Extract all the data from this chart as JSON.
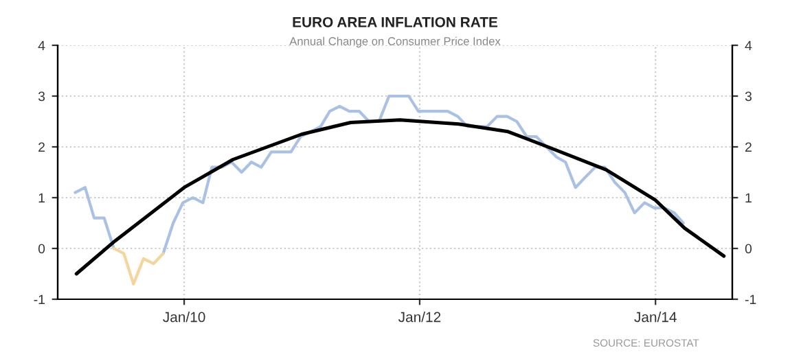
{
  "chart_data": {
    "type": "line",
    "title": "EURO AREA INFLATION RATE",
    "subtitle": "Annual Change on Consumer Price Index",
    "x": [
      "2009-01-28",
      "2009-02-28",
      "2009-03-28",
      "2009-04-28",
      "2009-05-28",
      "2009-06-28",
      "2009-07-28",
      "2009-08-28",
      "2009-09-28",
      "2009-10-28",
      "2009-11-28",
      "2009-12-28",
      "2010-01-28",
      "2010-02-28",
      "2010-03-28",
      "2010-04-28",
      "2010-05-28",
      "2010-06-28",
      "2010-07-28",
      "2010-08-28",
      "2010-09-28",
      "2010-10-28",
      "2010-11-28",
      "2010-12-28",
      "2011-01-28",
      "2011-02-28",
      "2011-03-28",
      "2011-04-28",
      "2011-05-28",
      "2011-06-28",
      "2011-07-28",
      "2011-08-28",
      "2011-09-28",
      "2011-10-28",
      "2011-11-28",
      "2011-12-28",
      "2012-01-28",
      "2012-02-28",
      "2012-03-28",
      "2012-04-28",
      "2012-05-28",
      "2012-06-28",
      "2012-07-28",
      "2012-08-28",
      "2012-09-28",
      "2012-10-28",
      "2012-11-28",
      "2012-12-28",
      "2013-01-28",
      "2013-02-28",
      "2013-03-28",
      "2013-04-28",
      "2013-05-28",
      "2013-06-28",
      "2013-07-28",
      "2013-08-28",
      "2013-09-28",
      "2013-10-28",
      "2013-11-28",
      "2013-12-28",
      "2014-01-28",
      "2014-02-28",
      "2014-03-28"
    ],
    "series": [
      {
        "color": "#a9c1e4",
        "values": [
          1.1,
          1.2,
          0.6,
          0.6,
          0.0,
          null,
          null,
          null,
          null,
          -0.1,
          0.5,
          0.9,
          1.0,
          0.9,
          1.6,
          1.6,
          1.7,
          1.5,
          1.7,
          1.6,
          1.9,
          1.9,
          1.9,
          2.2,
          2.3,
          2.4,
          2.7,
          2.8,
          2.7,
          2.7,
          2.5,
          2.5,
          3.0,
          3.0,
          3.0,
          2.7,
          2.7,
          2.7,
          2.7,
          2.6,
          2.4,
          2.4,
          2.4,
          2.6,
          2.6,
          2.5,
          2.2,
          2.2,
          2.0,
          1.8,
          1.7,
          1.2,
          1.4,
          1.6,
          1.6,
          1.3,
          1.1,
          0.7,
          0.9,
          0.8,
          0.8,
          0.7,
          0.5
        ]
      },
      {
        "color": "#f4d59b",
        "x": [
          "2009-05-28",
          "2009-06-28",
          "2009-07-28",
          "2009-08-28",
          "2009-09-28",
          "2009-10-28"
        ],
        "values": [
          0.0,
          -0.1,
          -0.7,
          -0.2,
          -0.3,
          -0.1
        ]
      },
      {
        "type": "line",
        "color": "#000000",
        "x": [
          "2009-02-01",
          "2009-06-01",
          "2010-01-01",
          "2010-06-01",
          "2011-01-01",
          "2011-06-01",
          "2011-11-01",
          "2012-05-01",
          "2012-10-01",
          "2013-02-01",
          "2013-08-01",
          "2014-01-01",
          "2014-04-01",
          "2014-08-01"
        ],
        "values": [
          -0.5,
          0.15,
          1.2,
          1.75,
          2.25,
          2.48,
          2.53,
          2.45,
          2.3,
          2.0,
          1.55,
          0.95,
          0.4,
          -0.15
        ]
      }
    ],
    "xlim": [
      "2008-12-05",
      "2014-08-27"
    ],
    "xticks": [
      {
        "value": "2010-01-01",
        "label": "Jan/10"
      },
      {
        "value": "2012-01-01",
        "label": "Jan/12"
      },
      {
        "value": "2014-01-01",
        "label": "Jan/14"
      }
    ],
    "ylim": [
      -1,
      4
    ],
    "yticks": [
      -1,
      0,
      1,
      2,
      3,
      4
    ],
    "y2lim": [
      -1,
      4
    ],
    "y2ticks": [
      -1,
      0,
      1,
      2,
      3,
      4
    ],
    "grid": true,
    "line_style": "solid",
    "annotations": [
      "SOURCE: EUROSTAT"
    ]
  }
}
